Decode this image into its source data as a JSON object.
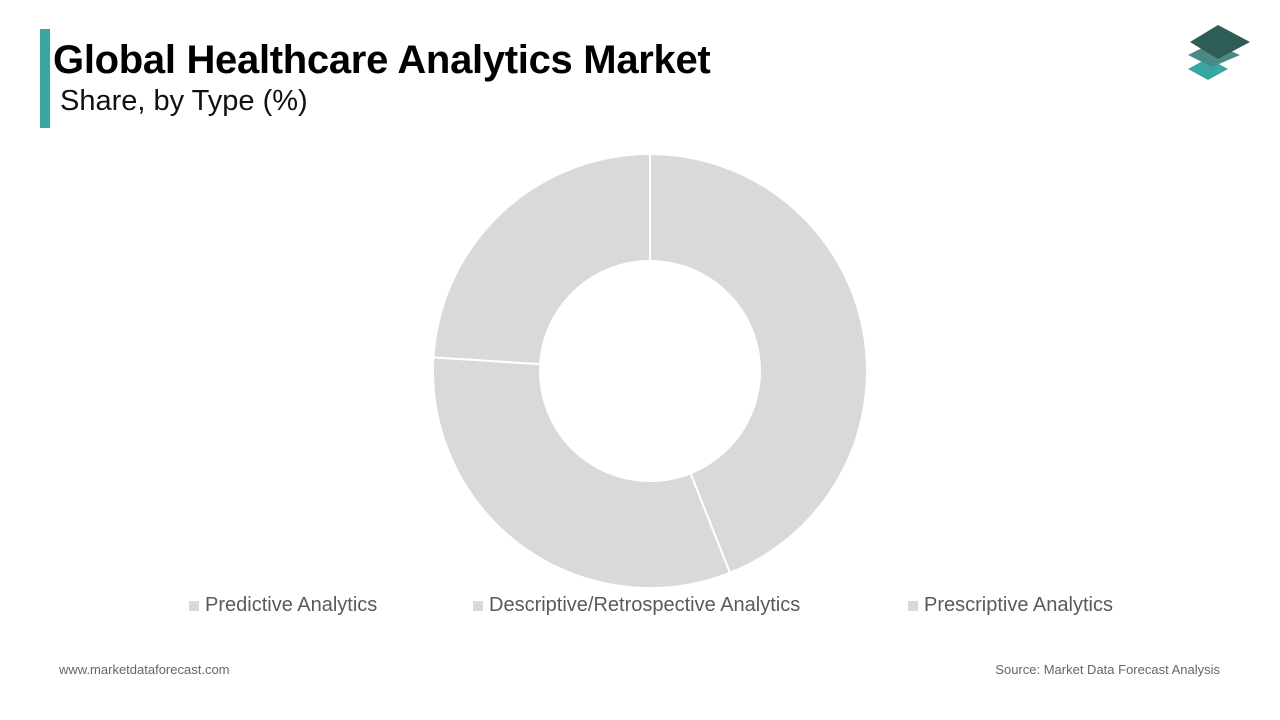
{
  "header": {
    "title": "Global Healthcare Analytics Market",
    "subtitle": "Share, by Type (%)"
  },
  "colors": {
    "accent": "#3aa6a1",
    "slice": "#d9d9d9",
    "slice_border": "#ffffff",
    "legend_swatch": "#d9d9d9",
    "logo_top": "#2e5d58",
    "logo_middle": "#4a8a84",
    "logo_bottom": "#3aa6a1"
  },
  "logo": {
    "icon": "stacked-layers-icon"
  },
  "chart_data": {
    "type": "pie",
    "donut": true,
    "labels": [
      "Predictive Analytics",
      "Descriptive/Retrospective Analytics",
      "Prescriptive Analytics"
    ],
    "values": [
      44,
      32,
      24
    ],
    "legend_position": "bottom",
    "data_labels": false
  },
  "footer": {
    "website": "www.marketdataforecast.com",
    "source": "Source: Market Data Forecast Analysis"
  }
}
